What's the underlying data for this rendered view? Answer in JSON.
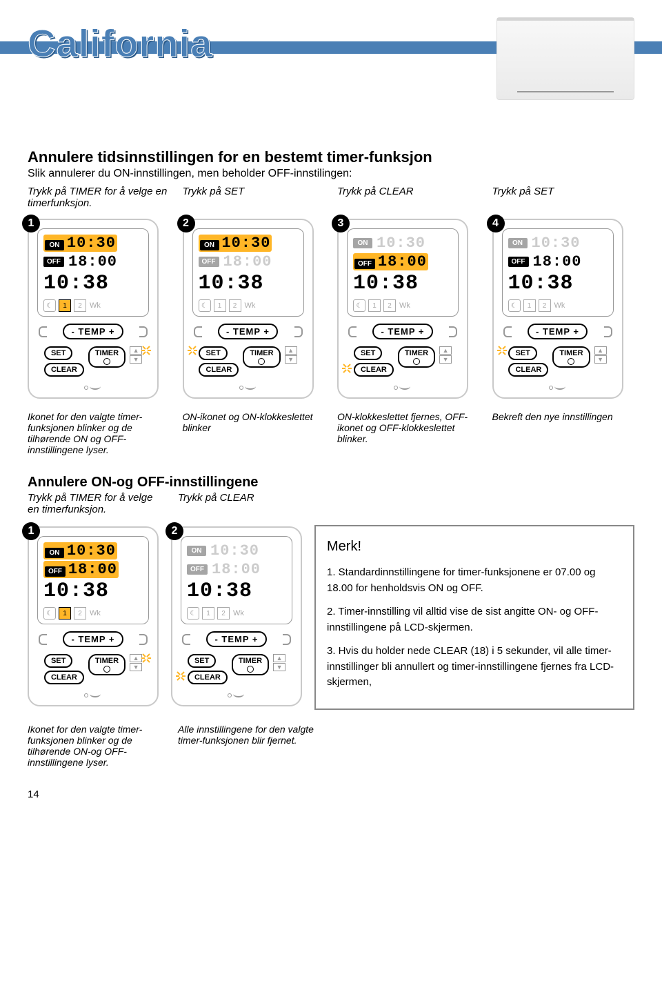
{
  "brand": "California",
  "page_number": "14",
  "section1": {
    "title": "Annulere tidsinnstillingen for en bestemt timer-funksjon",
    "subtitle": "Slik annulerer du ON-innstillingen, men beholder OFF-innstilingen:",
    "steps": [
      {
        "num": "1",
        "label": "Trykk på TIMER for å velge en  timerfunksjon.",
        "on": "10:30",
        "off": "18:00",
        "clock": "10:38",
        "hl_on": true,
        "hl_off": false,
        "faded_on": false,
        "faded_off": false,
        "ico_hl": true,
        "flash": "timer",
        "desc": "Ikonet for den valgte timer-funksjonen blinker og de tilhørende ON og OFF-innstillingene lyser."
      },
      {
        "num": "2",
        "label": "Trykk på SET",
        "on": "10:30",
        "off": "18:00",
        "clock": "10:38",
        "hl_on": true,
        "hl_off": false,
        "faded_on": false,
        "faded_off": true,
        "ico_hl": false,
        "flash": "set",
        "desc": "ON-ikonet og ON-klokkeslettet blinker"
      },
      {
        "num": "3",
        "label": "Trykk på CLEAR",
        "on": "10:30",
        "off": "18:00",
        "clock": "10:38",
        "hl_on": false,
        "hl_off": true,
        "faded_on": true,
        "faded_off": false,
        "ico_hl": false,
        "flash": "clear",
        "desc": "ON-klokkeslettet fjernes, OFF-ikonet og OFF-klokkeslettet blinker."
      },
      {
        "num": "4",
        "label": "Trykk på SET",
        "on": "10:30",
        "off": "18:00",
        "clock": "10:38",
        "hl_on": false,
        "hl_off": false,
        "faded_on": true,
        "faded_off": false,
        "ico_hl": false,
        "flash": "set",
        "desc": "Bekreft den nye innstillingen"
      }
    ]
  },
  "section2": {
    "title": "Annulere ON-og OFF-innstillingene",
    "steps": [
      {
        "num": "1",
        "label": "Trykk på TIMER for å velge en timerfunksjon.",
        "on": "10:30",
        "off": "18:00",
        "clock": "10:38",
        "hl_on": true,
        "hl_off": true,
        "faded_on": false,
        "faded_off": false,
        "ico_hl": true,
        "flash": "timer",
        "desc": "Ikonet  for den valgte timer-funksjonen blinker og de tilhørende ON-og OFF-innstillingene lyser."
      },
      {
        "num": "2",
        "label": "Trykk på CLEAR",
        "on": "10:30",
        "off": "18:00",
        "clock": "10:38",
        "hl_on": false,
        "hl_off": false,
        "faded_on": true,
        "faded_off": true,
        "ico_hl": false,
        "flash": "clear",
        "desc": "Alle innstillingene for den valgte timer-funksjonen blir fjernet."
      }
    ]
  },
  "note": {
    "title": "Merk!",
    "p1": "1. Standardinnstillingene for timer-funksjonene er 07.00 og 18.00 for henholdsvis ON og OFF.",
    "p2": "2. Timer-innstilling vil alltid vise de sist angitte ON- og OFF-innstillingene på LCD-skjermen.",
    "p3": "3. Hvis du holder nede CLEAR (18) i 5 sekunder, vil alle timer-innstillinger bli annullert og timer-innstillingene fjernes fra LCD-skjermen,"
  },
  "controls": {
    "temp": "- TEMP +",
    "set": "SET",
    "timer": "TIMER",
    "clear": "CLEAR",
    "on": "ON",
    "off": "OFF",
    "wk": "Wk",
    "n1": "1",
    "n2": "2"
  },
  "colors": {
    "brand": "#4a7fb5",
    "highlight": "#ffb627",
    "border": "#c9c9c9",
    "text": "#000000",
    "faded": "#cccccc",
    "note_border": "#888888"
  }
}
